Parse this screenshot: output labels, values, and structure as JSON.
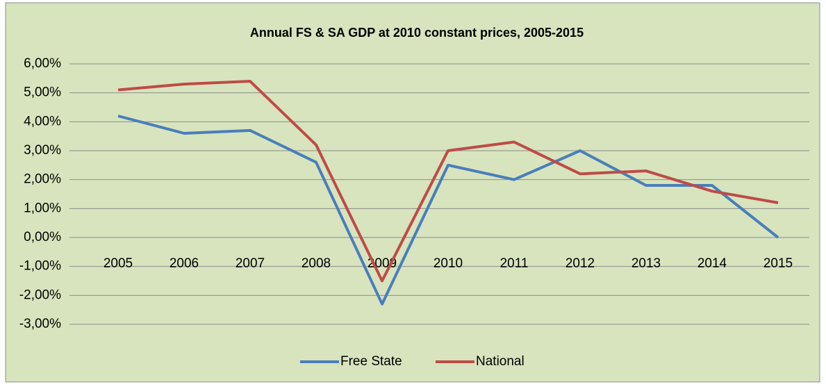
{
  "chart_data": {
    "type": "line",
    "title": "Annual FS & SA GDP at 2010 constant prices, 2005-2015",
    "categories": [
      "2005",
      "2006",
      "2007",
      "2008",
      "2009",
      "2010",
      "2011",
      "2012",
      "2013",
      "2014",
      "2015"
    ],
    "series": [
      {
        "name": "Free State",
        "color": "#4a7ebb",
        "values": [
          4.2,
          3.6,
          3.7,
          2.6,
          -2.3,
          2.5,
          2.0,
          3.0,
          1.8,
          1.8,
          0.0
        ]
      },
      {
        "name": "National",
        "color": "#be4b48",
        "values": [
          5.1,
          5.3,
          5.4,
          3.2,
          -1.5,
          3.0,
          3.3,
          2.2,
          2.3,
          1.6,
          1.2
        ]
      }
    ],
    "ylim": [
      -3,
      6
    ],
    "yticks": [
      {
        "value": -3,
        "label": "-3,00%"
      },
      {
        "value": -2,
        "label": "-2,00%"
      },
      {
        "value": -1,
        "label": "-1,00%"
      },
      {
        "value": 0,
        "label": "0,00%"
      },
      {
        "value": 1,
        "label": "1,00%"
      },
      {
        "value": 2,
        "label": "2,00%"
      },
      {
        "value": 3,
        "label": "3,00%"
      },
      {
        "value": 4,
        "label": "4,00%"
      },
      {
        "value": 5,
        "label": "5,00%"
      },
      {
        "value": 6,
        "label": "6,00%"
      }
    ],
    "grid": true,
    "legend": "bottom"
  }
}
